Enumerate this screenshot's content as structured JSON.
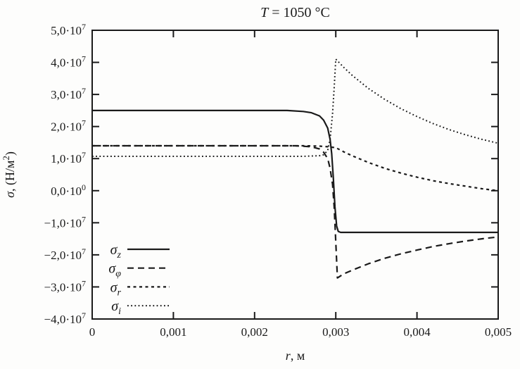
{
  "colors": {
    "ink": "#1a1a1a",
    "background": "#fdfdfc"
  },
  "chart_data": {
    "type": "line",
    "title": "T = 1050 °C",
    "title_parts": [
      {
        "text": "T",
        "italic": true
      },
      {
        "text": " = 1050 °C"
      }
    ],
    "xlabel": "r, м",
    "xlabel_parts": [
      {
        "text": "r",
        "italic": true
      },
      {
        "text": ", м"
      }
    ],
    "ylabel": "σ, (Н/м²)",
    "ylabel_parts": [
      {
        "text": "σ",
        "italic": true
      },
      {
        "text": ", (Н/м"
      },
      {
        "text": "2",
        "sup": true
      },
      {
        "text": ")"
      }
    ],
    "xlim": [
      0,
      0.005
    ],
    "ylim": [
      -40000000,
      50000000
    ],
    "grid": false,
    "legend_position": "inside-bottom-left",
    "x_ticks": [
      {
        "v": 0,
        "label": "0"
      },
      {
        "v": 0.001,
        "label": "0,001"
      },
      {
        "v": 0.002,
        "label": "0,002"
      },
      {
        "v": 0.003,
        "label": "0,003"
      },
      {
        "v": 0.004,
        "label": "0,004"
      },
      {
        "v": 0.005,
        "label": "0,005"
      }
    ],
    "y_ticks": [
      {
        "v": 50000000,
        "parts": [
          {
            "text": "5,0·10"
          },
          {
            "text": "7",
            "sup": true
          }
        ]
      },
      {
        "v": 40000000,
        "parts": [
          {
            "text": "4,0·10"
          },
          {
            "text": "7",
            "sup": true
          }
        ]
      },
      {
        "v": 30000000,
        "parts": [
          {
            "text": "3,0·10"
          },
          {
            "text": "7",
            "sup": true
          }
        ]
      },
      {
        "v": 20000000,
        "parts": [
          {
            "text": "2,0·10"
          },
          {
            "text": "7",
            "sup": true
          }
        ]
      },
      {
        "v": 10000000,
        "parts": [
          {
            "text": "1,0·10"
          },
          {
            "text": "7",
            "sup": true
          }
        ]
      },
      {
        "v": 0,
        "parts": [
          {
            "text": "0,0·10"
          },
          {
            "text": "0",
            "sup": true
          }
        ]
      },
      {
        "v": -10000000,
        "parts": [
          {
            "text": "−1,0·10"
          },
          {
            "text": "7",
            "sup": true
          }
        ]
      },
      {
        "v": -20000000,
        "parts": [
          {
            "text": "−2,0·10"
          },
          {
            "text": "7",
            "sup": true
          }
        ]
      },
      {
        "v": -30000000,
        "parts": [
          {
            "text": "−3,0·10"
          },
          {
            "text": "7",
            "sup": true
          }
        ]
      },
      {
        "v": -40000000,
        "parts": [
          {
            "text": "−4,0·10"
          },
          {
            "text": "7",
            "sup": true
          }
        ]
      }
    ],
    "series": [
      {
        "id": "sigma-z",
        "label": "σz",
        "label_parts": [
          {
            "text": "σ",
            "italic": true
          },
          {
            "text": "z",
            "sub": true,
            "italic": true
          }
        ],
        "line_style": "solid",
        "dash": "",
        "stroke": "#1a1a1a",
        "width": 2.2,
        "points": [
          [
            0,
            25000000.0
          ],
          [
            0.0005,
            25000000.0
          ],
          [
            0.001,
            25000000.0
          ],
          [
            0.0015,
            25000000.0
          ],
          [
            0.002,
            25000000.0
          ],
          [
            0.0024,
            25000000.0
          ],
          [
            0.0026,
            24700000.0
          ],
          [
            0.0027,
            24300000.0
          ],
          [
            0.0028,
            23300000.0
          ],
          [
            0.00285,
            22000000.0
          ],
          [
            0.0029,
            19500000.0
          ],
          [
            0.00293,
            16000000.0
          ],
          [
            0.00295,
            11500000.0
          ],
          [
            0.00297,
            4000000.0
          ],
          [
            0.00299,
            -5000000.0
          ],
          [
            0.00301,
            -11000000.0
          ],
          [
            0.00303,
            -12700000.0
          ],
          [
            0.00306,
            -13000000.0
          ],
          [
            0.0035,
            -13000000.0
          ],
          [
            0.004,
            -13000000.0
          ],
          [
            0.0045,
            -13000000.0
          ],
          [
            0.005,
            -13000000.0
          ]
        ]
      },
      {
        "id": "sigma-phi",
        "label": "σφ",
        "label_parts": [
          {
            "text": "σ",
            "italic": true
          },
          {
            "text": "φ",
            "sub": true,
            "italic": true
          }
        ],
        "line_style": "dashed",
        "dash": "9,6",
        "stroke": "#1a1a1a",
        "width": 2.2,
        "points": [
          [
            0,
            14000000.0
          ],
          [
            0.0005,
            14000000.0
          ],
          [
            0.001,
            14000000.0
          ],
          [
            0.0015,
            14000000.0
          ],
          [
            0.002,
            14000000.0
          ],
          [
            0.0025,
            14000000.0
          ],
          [
            0.0027,
            13700000.0
          ],
          [
            0.0028,
            13000000.0
          ],
          [
            0.00285,
            12000000.0
          ],
          [
            0.0029,
            10000000.0
          ],
          [
            0.00293,
            7000000.0
          ],
          [
            0.00296,
            2000000.0
          ],
          [
            0.00298,
            -5000000.0
          ],
          [
            0.003,
            -16000000.0
          ],
          [
            0.00302,
            -27200000.0
          ],
          [
            0.0031,
            -25900000.0
          ],
          [
            0.0032,
            -24800000.0
          ],
          [
            0.0034,
            -22800000.0
          ],
          [
            0.0036,
            -21100000.0
          ],
          [
            0.0038,
            -19700000.0
          ],
          [
            0.004,
            -18500000.0
          ],
          [
            0.0042,
            -17400000.0
          ],
          [
            0.0044,
            -16500000.0
          ],
          [
            0.0046,
            -15700000.0
          ],
          [
            0.0048,
            -15000000.0
          ],
          [
            0.005,
            -14400000.0
          ]
        ]
      },
      {
        "id": "sigma-r",
        "label": "σr",
        "label_parts": [
          {
            "text": "σ",
            "italic": true
          },
          {
            "text": "r",
            "sub": true,
            "italic": true
          }
        ],
        "line_style": "short-dash",
        "dash": "4,4.5",
        "stroke": "#1a1a1a",
        "width": 2.2,
        "points": [
          [
            0,
            14000000.0
          ],
          [
            0.001,
            14000000.0
          ],
          [
            0.002,
            14000000.0
          ],
          [
            0.0026,
            14000000.0
          ],
          [
            0.0028,
            13900000.0
          ],
          [
            0.0029,
            13700000.0
          ],
          [
            0.003,
            13400000.0
          ],
          [
            0.0031,
            12100000.0
          ],
          [
            0.0032,
            10900000.0
          ],
          [
            0.0034,
            8800000.0
          ],
          [
            0.0036,
            7000000.0
          ],
          [
            0.0038,
            5500000.0
          ],
          [
            0.004,
            4200000.0
          ],
          [
            0.0042,
            3100000.0
          ],
          [
            0.0044,
            2200000.0
          ],
          [
            0.0046,
            1400000.0
          ],
          [
            0.0048,
            600000.0
          ],
          [
            0.005,
            0
          ]
        ]
      },
      {
        "id": "sigma-i",
        "label": "σi",
        "label_parts": [
          {
            "text": "σ",
            "italic": true
          },
          {
            "text": "i",
            "sub": true,
            "italic": true
          }
        ],
        "line_style": "dotted",
        "dash": "1.8,3.4",
        "stroke": "#1a1a1a",
        "width": 2,
        "points": [
          [
            0,
            10700000.0
          ],
          [
            0.001,
            10700000.0
          ],
          [
            0.002,
            10700000.0
          ],
          [
            0.0026,
            10700000.0
          ],
          [
            0.0028,
            10900000.0
          ],
          [
            0.00285,
            11200000.0
          ],
          [
            0.0029,
            12500000.0
          ],
          [
            0.00293,
            16000000.0
          ],
          [
            0.00296,
            24000000.0
          ],
          [
            0.00298,
            32000000.0
          ],
          [
            0.003,
            41000000.0
          ],
          [
            0.0031,
            38400000.0
          ],
          [
            0.0032,
            36000000.0
          ],
          [
            0.0034,
            31900000.0
          ],
          [
            0.0036,
            28500000.0
          ],
          [
            0.0038,
            25600000.0
          ],
          [
            0.004,
            23100000.0
          ],
          [
            0.0042,
            20900000.0
          ],
          [
            0.0044,
            19000000.0
          ],
          [
            0.0046,
            17400000.0
          ],
          [
            0.0048,
            16000000.0
          ],
          [
            0.005,
            14800000.0
          ]
        ]
      }
    ]
  }
}
